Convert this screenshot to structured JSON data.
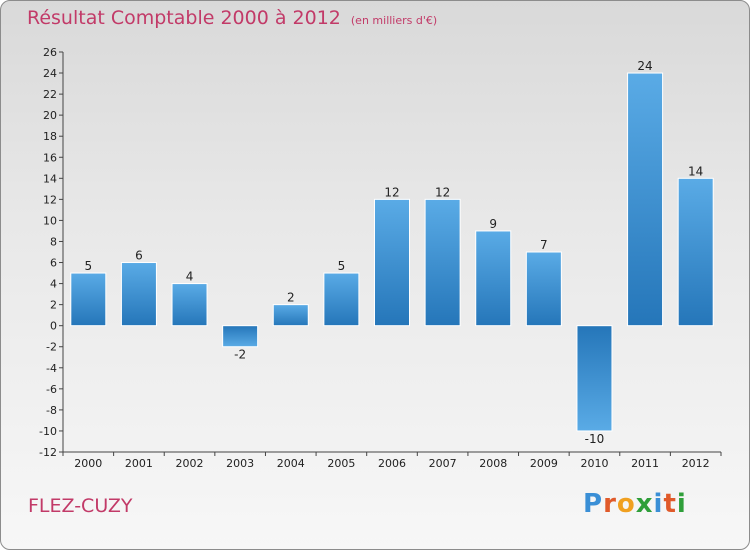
{
  "header": {
    "title": "Résultat Comptable 2000 à 2012",
    "unit": "(en milliers d'€)"
  },
  "footer": {
    "city": "FLEZ-CUZY",
    "brand": "Proxiti"
  },
  "colors": {
    "title": "#c23a68",
    "bar_top": "#5aabe6",
    "bar_bottom": "#2576b9"
  },
  "chart_data": {
    "type": "bar",
    "title": "Résultat Comptable 2000 à 2012",
    "subtitle": "(en milliers d'€)",
    "categories": [
      "2000",
      "2001",
      "2002",
      "2003",
      "2004",
      "2005",
      "2006",
      "2007",
      "2008",
      "2009",
      "2010",
      "2011",
      "2012"
    ],
    "values": [
      5,
      6,
      4,
      -2,
      2,
      5,
      12,
      12,
      9,
      7,
      -10,
      24,
      14
    ],
    "ylim": [
      -12,
      26
    ],
    "yticks": [
      26,
      24,
      22,
      20,
      18,
      16,
      14,
      12,
      10,
      8,
      6,
      4,
      2,
      0,
      -2,
      -4,
      -6,
      -8,
      -10,
      -12
    ],
    "grid": false,
    "legend": "none"
  }
}
